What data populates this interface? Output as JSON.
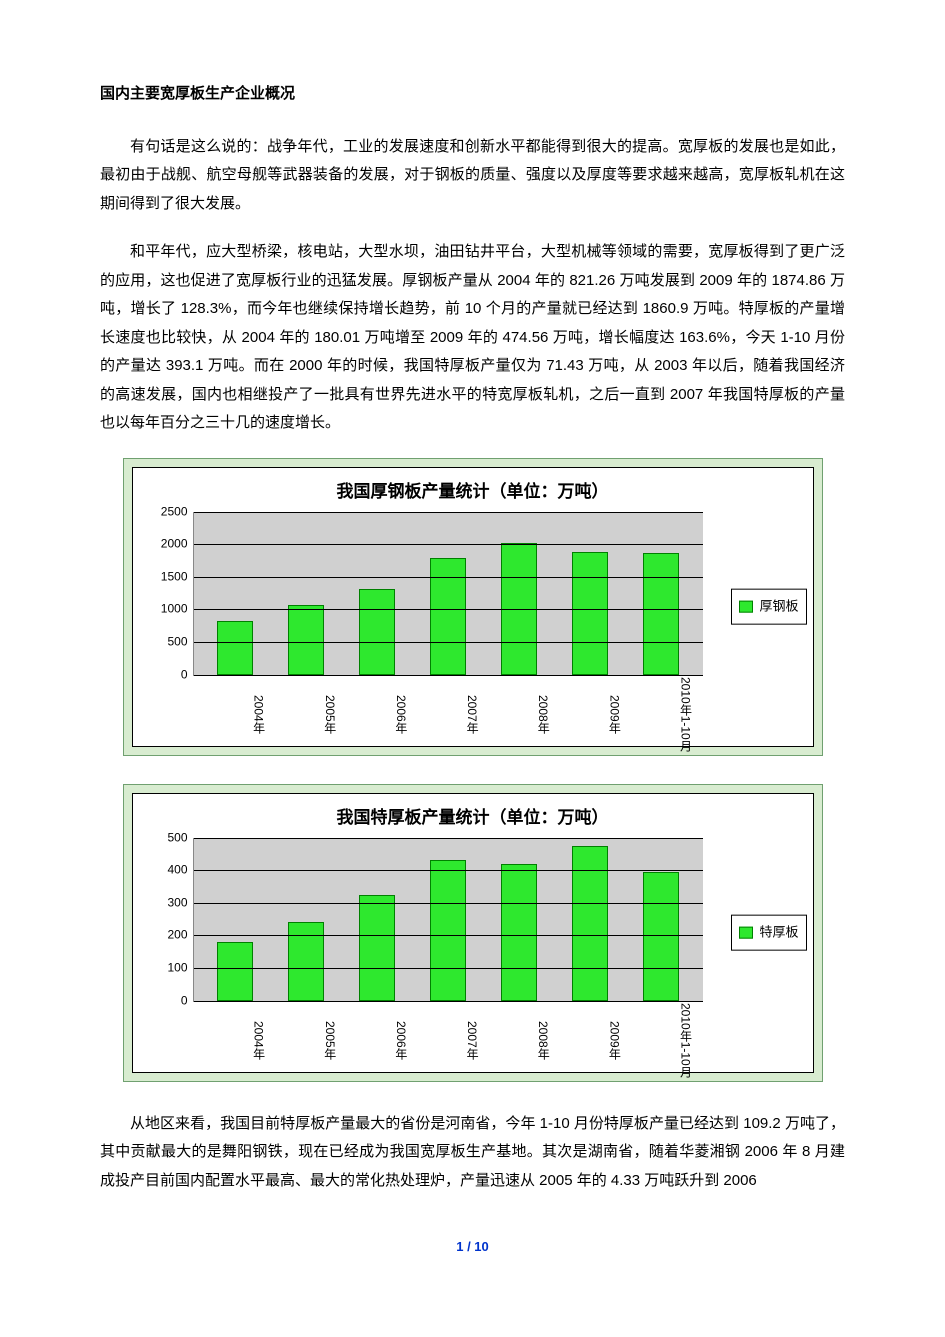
{
  "title": "国内主要宽厚板生产企业概况",
  "paragraphs": {
    "p1": "有句话是这么说的：战争年代，工业的发展速度和创新水平都能得到很大的提高。宽厚板的发展也是如此，最初由于战舰、航空母舰等武器装备的发展，对于钢板的质量、强度以及厚度等要求越来越高，宽厚板轧机在这期间得到了很大发展。",
    "p2": "和平年代，应大型桥梁，核电站，大型水坝，油田钻井平台，大型机械等领域的需要，宽厚板得到了更广泛的应用，这也促进了宽厚板行业的迅猛发展。厚钢板产量从 2004 年的 821.26 万吨发展到 2009 年的 1874.86 万吨，增长了 128.3%，而今年也继续保持增长趋势，前 10 个月的产量就已经达到 1860.9 万吨。特厚板的产量增长速度也比较快，从 2004 年的 180.01 万吨增至 2009 年的 474.56 万吨，增长幅度达 163.6%，今天 1-10 月份的产量达 393.1 万吨。而在 2000 年的时候，我国特厚板产量仅为 71.43 万吨，从 2003 年以后，随着我国经济的高速发展，国内也相继投产了一批具有世界先进水平的特宽厚板轧机，之后一直到 2007 年我国特厚板的产量也以每年百分之三十几的速度增长。",
    "p3": "从地区来看，我国目前特厚板产量最大的省份是河南省，今年 1-10 月份特厚板产量已经达到 109.2 万吨了，其中贡献最大的是舞阳钢铁，现在已经成为我国宽厚板生产基地。其次是湖南省，随着华菱湘钢 2006 年 8 月建成投产目前国内配置水平最高、最大的常化热处理炉，产量迅速从 2005 年的 4.33 万吨跃升到 2006"
  },
  "chart1": {
    "type": "bar",
    "title": "我国厚钢板产量统计（单位：万吨）",
    "categories": [
      "2004年",
      "2005年",
      "2006年",
      "2007年",
      "2008年",
      "2009年",
      "2010年1-10月"
    ],
    "values": [
      821,
      1060,
      1310,
      1780,
      2020,
      1875,
      1861
    ],
    "ymax": 2500,
    "ytick_step": 500,
    "yticks": [
      0,
      500,
      1000,
      1500,
      2000,
      2500
    ],
    "legend_label": "厚钢板",
    "bar_color": "#2ee82e",
    "bar_border": "#008000",
    "plot_bg": "#d0d0d0",
    "outer_bg": "#d8ecd0",
    "grid_color": "#000000"
  },
  "chart2": {
    "type": "bar",
    "title": "我国特厚板产量统计（单位：万吨）",
    "categories": [
      "2004年",
      "2005年",
      "2006年",
      "2007年",
      "2008年",
      "2009年",
      "2010年1-10月"
    ],
    "values": [
      180,
      240,
      325,
      430,
      420,
      475,
      393
    ],
    "ymax": 500,
    "ytick_step": 100,
    "yticks": [
      0,
      100,
      200,
      300,
      400,
      500
    ],
    "legend_label": "特厚板",
    "bar_color": "#2ee82e",
    "bar_border": "#008000",
    "plot_bg": "#d0d0d0",
    "outer_bg": "#d8ecd0",
    "grid_color": "#000000"
  },
  "page_number": "1 / 10"
}
